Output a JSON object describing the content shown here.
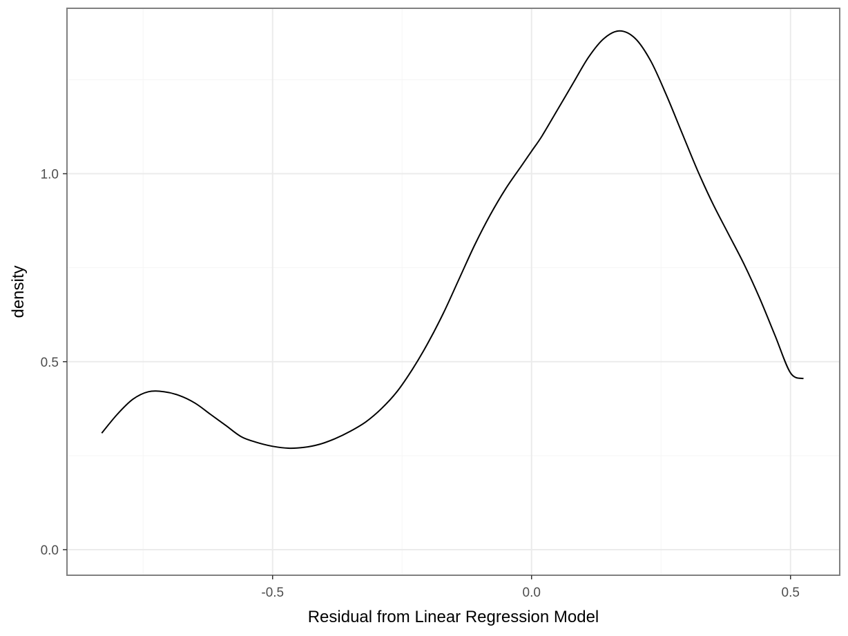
{
  "chart_data": {
    "type": "line",
    "title": "",
    "xlabel": "Residual from Linear Regression Model",
    "ylabel": "density",
    "xlim": [
      -0.897,
      0.595
    ],
    "ylim": [
      -0.068,
      1.44
    ],
    "x_ticks": [
      -0.5,
      0.0,
      0.5
    ],
    "x_tick_labels": [
      "-0.5",
      "0.0",
      "0.5"
    ],
    "y_ticks": [
      0.0,
      0.5,
      1.0
    ],
    "y_tick_labels": [
      "0.0",
      "0.5",
      "1.0"
    ],
    "grid": true,
    "legend": "none",
    "colors": {
      "line": "#000000",
      "grid_major": "#ebebeb",
      "grid_minor": "#f5f5f5",
      "panel_border": "#7f7f7f",
      "tick_text": "#4d4d4d"
    },
    "series": [
      {
        "x": [
          -0.83,
          -0.8,
          -0.77,
          -0.74,
          -0.71,
          -0.68,
          -0.65,
          -0.62,
          -0.59,
          -0.56,
          -0.53,
          -0.5,
          -0.47,
          -0.44,
          -0.41,
          -0.38,
          -0.35,
          -0.32,
          -0.29,
          -0.26,
          -0.23,
          -0.2,
          -0.17,
          -0.14,
          -0.11,
          -0.08,
          -0.05,
          -0.02,
          0.0,
          0.02,
          0.05,
          0.08,
          0.11,
          0.14,
          0.17,
          0.2,
          0.23,
          0.26,
          0.29,
          0.32,
          0.35,
          0.38,
          0.41,
          0.44,
          0.47,
          0.5,
          0.525
        ],
        "y": [
          0.31,
          0.36,
          0.4,
          0.42,
          0.42,
          0.41,
          0.39,
          0.36,
          0.33,
          0.3,
          0.285,
          0.275,
          0.27,
          0.272,
          0.28,
          0.295,
          0.315,
          0.34,
          0.375,
          0.42,
          0.48,
          0.55,
          0.63,
          0.72,
          0.81,
          0.89,
          0.96,
          1.02,
          1.06,
          1.1,
          1.17,
          1.24,
          1.31,
          1.36,
          1.38,
          1.36,
          1.3,
          1.21,
          1.11,
          1.01,
          0.92,
          0.84,
          0.76,
          0.67,
          0.57,
          0.47,
          0.455
        ]
      }
    ]
  }
}
